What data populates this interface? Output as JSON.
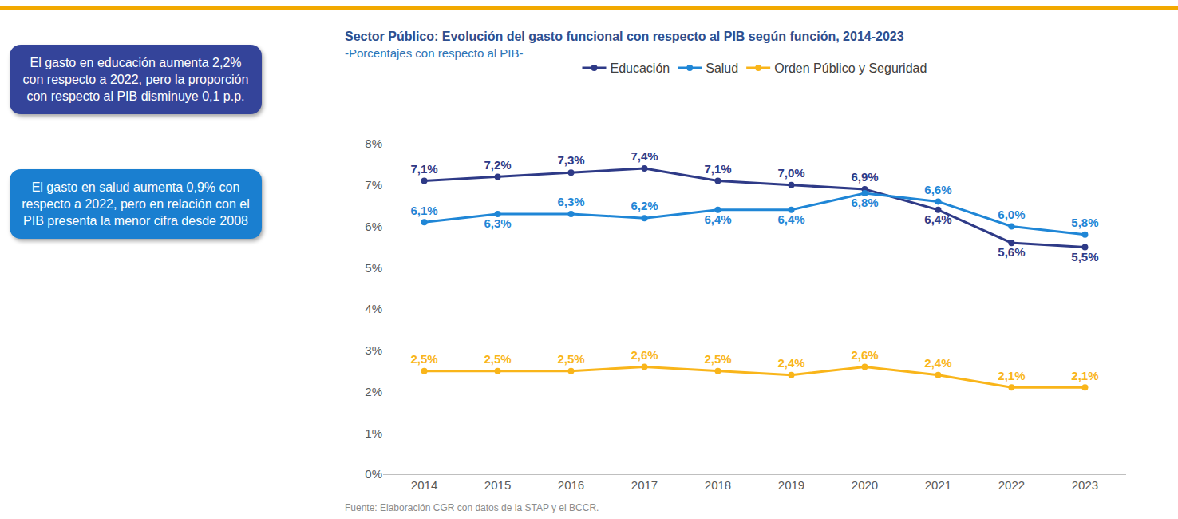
{
  "chart_data": {
    "type": "line",
    "title": "Sector Público: Evolución del gasto funcional con respecto al PIB según función, 2014-2023",
    "subtitle": "-Porcentajes con respecto al PIB-",
    "source": "Fuente: Elaboración CGR con datos de la STAP y el BCCR.",
    "annotations": [
      "El gasto en educación aumenta 2,2% con respecto a 2022, pero la proporción con respecto al PIB disminuye 0,1 p.p.",
      "El gasto en salud aumenta 0,9% con respecto a 2022, pero en relación con el PIB presenta la menor cifra desde 2008"
    ],
    "categories": [
      "2014",
      "2015",
      "2016",
      "2017",
      "2018",
      "2019",
      "2020",
      "2021",
      "2022",
      "2023"
    ],
    "series": [
      {
        "name": "Educación",
        "color": "#2e3a87",
        "values": [
          7.1,
          7.2,
          7.3,
          7.4,
          7.1,
          7.0,
          6.9,
          6.4,
          5.6,
          5.5
        ],
        "value_labels": [
          "7,1%",
          "7,2%",
          "7,3%",
          "7,4%",
          "7,1%",
          "7,0%",
          "6,9%",
          "6,4%",
          "5,6%",
          "5,5%"
        ]
      },
      {
        "name": "Salud",
        "color": "#1f86d6",
        "values": [
          6.1,
          6.3,
          6.3,
          6.2,
          6.4,
          6.4,
          6.8,
          6.6,
          6.0,
          5.8
        ],
        "value_labels": [
          "6,1%",
          "6,3%",
          "6,3%",
          "6,2%",
          "6,4%",
          "6,4%",
          "6,8%",
          "6,6%",
          "6,0%",
          "5,8%"
        ]
      },
      {
        "name": "Orden Público y Seguridad",
        "color": "#f9b51a",
        "values": [
          2.5,
          2.5,
          2.5,
          2.6,
          2.5,
          2.4,
          2.6,
          2.4,
          2.1,
          2.1
        ],
        "value_labels": [
          "2,5%",
          "2,5%",
          "2,5%",
          "2,6%",
          "2,5%",
          "2,4%",
          "2,6%",
          "2,4%",
          "2,1%",
          "2,1%"
        ]
      }
    ],
    "ylim": [
      0,
      8
    ],
    "yticks": [
      {
        "value": 0,
        "label": "0%"
      },
      {
        "value": 1,
        "label": "1%"
      },
      {
        "value": 2,
        "label": "2%"
      },
      {
        "value": 3,
        "label": "3%"
      },
      {
        "value": 4,
        "label": "4%"
      },
      {
        "value": 5,
        "label": "5%"
      },
      {
        "value": 6,
        "label": "6%"
      },
      {
        "value": 7,
        "label": "7%"
      },
      {
        "value": 8,
        "label": "8%"
      }
    ],
    "grid": false,
    "legend": "top",
    "data_labels": true,
    "marker": "circle",
    "line_style": "solid"
  }
}
